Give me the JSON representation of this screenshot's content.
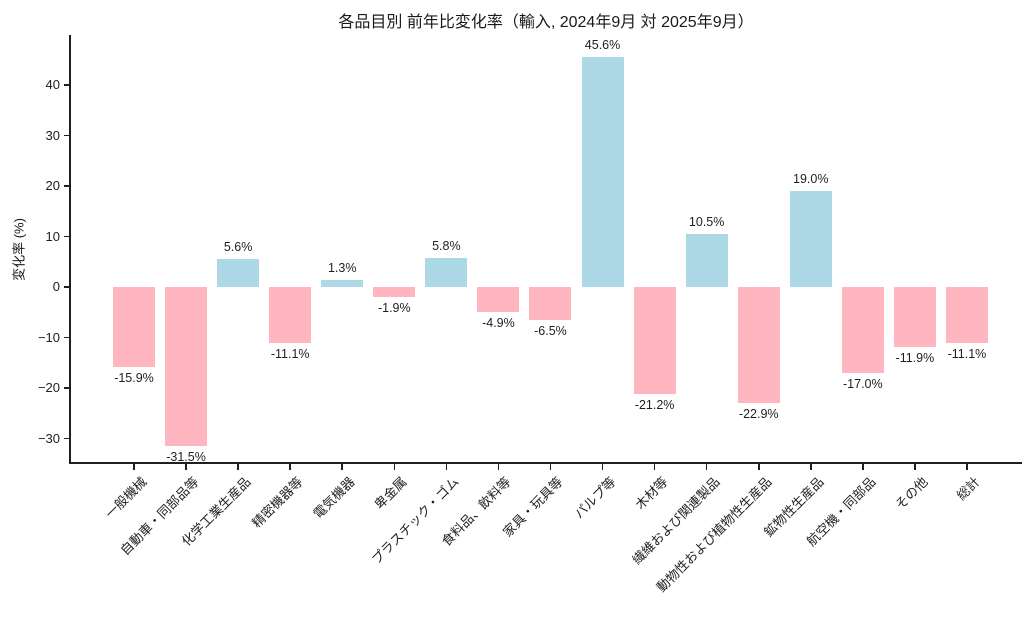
{
  "chart_data": {
    "type": "bar",
    "title": "各品目別 前年比変化率（輸入, 2024年9月 対 2025年9月）",
    "xlabel": "",
    "ylabel": "変化率 (%)",
    "categories": [
      "一般機械",
      "自動車・同部品等",
      "化学工業生産品",
      "精密機器等",
      "電気機器",
      "卑金属",
      "プラスチック・ゴム",
      "食料品、飲料等",
      "家具・玩具等",
      "パルプ等",
      "木材等",
      "繊維および関連製品",
      "動物性および植物性生産品",
      "鉱物性生産品",
      "航空機・同部品",
      "その他",
      "総計"
    ],
    "values": [
      -15.9,
      -31.5,
      5.6,
      -11.1,
      1.3,
      -1.9,
      5.8,
      -4.9,
      -6.5,
      45.6,
      -21.2,
      10.5,
      -22.9,
      19.0,
      -17.0,
      -11.9,
      -11.1
    ],
    "value_labels": [
      "-15.9%",
      "-31.5%",
      "5.6%",
      "-11.1%",
      "1.3%",
      "-1.9%",
      "5.8%",
      "-4.9%",
      "-6.5%",
      "45.6%",
      "-21.2%",
      "10.5%",
      "-22.9%",
      "19.0%",
      "-17.0%",
      "-11.9%",
      "-11.1%"
    ],
    "yticks": [
      40,
      30,
      20,
      10,
      0,
      -10,
      -20,
      -30
    ],
    "ylim": [
      -35.4,
      49.5
    ],
    "grid": false,
    "legend": null,
    "colors": {
      "positive_bar": "#ADD8E6",
      "negative_bar": "#FFB6C1",
      "text": "#1f1f1f",
      "axis": "#1f1f1f",
      "background": "#ffffff"
    }
  }
}
